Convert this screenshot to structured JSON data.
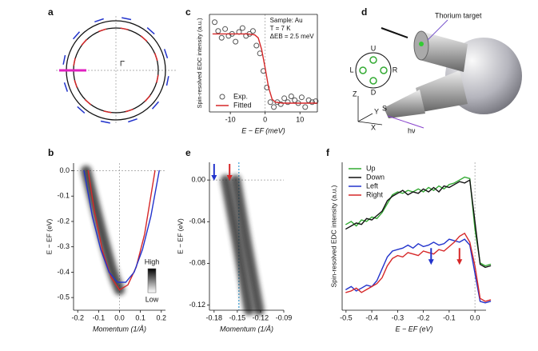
{
  "chart_data": [
    {
      "panel": "c",
      "type": "scatter",
      "xlabel": "E − EF (meV)",
      "ylabel": "Spin-resolved EDC intensity (a.u.)",
      "annotations": [
        "Sample: Au",
        "T = 7 K",
        "ΔEB = 2.5 meV"
      ],
      "xlim": [
        -16,
        15
      ],
      "xticks": [
        -10,
        0,
        10
      ],
      "ylim": [
        0,
        1
      ],
      "legend": "lower left",
      "series": [
        {
          "name": "Exp.",
          "color": "#555555",
          "x": [
            -14.5,
            -13.5,
            -12.5,
            -11.5,
            -10.5,
            -9.5,
            -8.5,
            -7.5,
            -6.5,
            -5.5,
            -4.5,
            -3.5,
            -2.5,
            -1.5,
            -0.5,
            0.5,
            1.5,
            2.5,
            3.5,
            4.5,
            5.5,
            6.5,
            7.5,
            8.5,
            9.5,
            10.5,
            11.5,
            12.5,
            13.5,
            14.5
          ],
          "values": [
            0.92,
            0.83,
            0.76,
            0.85,
            0.78,
            0.8,
            0.72,
            0.82,
            0.86,
            0.78,
            0.8,
            0.83,
            0.68,
            0.6,
            0.42,
            0.25,
            0.1,
            0.05,
            0.1,
            0.08,
            0.14,
            0.1,
            0.16,
            0.12,
            0.09,
            0.15,
            0.05,
            0.12,
            0.1,
            0.11
          ]
        },
        {
          "name": "Fitted",
          "color": "#d62728",
          "type": "line",
          "x": [
            -15,
            -10,
            -5,
            -3,
            -2,
            -1,
            0,
            1,
            2,
            3,
            5,
            10,
            15
          ],
          "values": [
            0.8,
            0.8,
            0.8,
            0.79,
            0.76,
            0.64,
            0.45,
            0.25,
            0.13,
            0.1,
            0.09,
            0.09,
            0.09
          ]
        }
      ]
    },
    {
      "panel": "b",
      "type": "line",
      "xlabel": "Momentum (1/Å)",
      "ylabel": "E − EF (eV)",
      "colorbar_labels": [
        "High",
        "Low"
      ],
      "xlim": [
        -0.22,
        0.22
      ],
      "xticks": [
        -0.2,
        -0.1,
        {
          "value": 0,
          "label": "0.0"
        },
        0.1,
        0.2
      ],
      "ylim": [
        -0.55,
        0.03
      ],
      "yticks": [
        {
          "value": 0,
          "label": "0.0"
        },
        -0.1,
        -0.2,
        -0.3,
        -0.4,
        -0.5
      ],
      "series": [
        {
          "color": "#222222",
          "x": [
            -0.16,
            -0.12,
            -0.08,
            -0.04,
            -0.02,
            0.0
          ],
          "values": [
            0,
            -0.13,
            -0.26,
            -0.38,
            -0.43,
            -0.47
          ]
        },
        {
          "color": "#d62728",
          "x": [
            -0.15,
            -0.12,
            -0.08,
            -0.04,
            0,
            0.04,
            0.08,
            0.12,
            0.17
          ],
          "values": [
            0,
            -0.16,
            -0.32,
            -0.42,
            -0.47,
            -0.45,
            -0.38,
            -0.25,
            0
          ]
        },
        {
          "color": "#2233cc",
          "x": [
            -0.17,
            -0.13,
            -0.09,
            -0.05,
            -0.01,
            0.03,
            0.07,
            0.11,
            0.15,
            0.19
          ],
          "values": [
            0,
            -0.18,
            -0.31,
            -0.4,
            -0.44,
            -0.44,
            -0.4,
            -0.31,
            -0.18,
            0
          ]
        }
      ]
    },
    {
      "panel": "e",
      "type": "line",
      "xlabel": "Momentum (1/Å)",
      "ylabel": "E − EF (eV)",
      "xlim": [
        -0.186,
        -0.09
      ],
      "xticks": [
        -0.18,
        -0.15,
        -0.12,
        -0.09
      ],
      "ylim": [
        -0.125,
        0.017
      ],
      "yticks": [
        {
          "value": 0,
          "label": "0.00"
        },
        -0.04,
        -0.08,
        -0.12
      ],
      "vline": {
        "x": -0.148,
        "color": "#3aa0d8"
      },
      "arrows": [
        {
          "x": -0.18,
          "color": "#2233cc"
        },
        {
          "x": -0.16,
          "color": "#d62728"
        }
      ],
      "series": [
        {
          "color": "#2a2a2a",
          "x": [
            -0.165,
            -0.15,
            -0.135
          ],
          "values": [
            0,
            -0.06,
            -0.125
          ]
        },
        {
          "color": "#2a2a2a",
          "x": [
            -0.152,
            -0.138,
            -0.122
          ],
          "values": [
            0,
            -0.06,
            -0.125
          ]
        }
      ]
    },
    {
      "panel": "f",
      "type": "line",
      "xlabel": "E − EF (eV)",
      "ylabel": "Spin-resolved EDC intensity (a.u.)",
      "xlim": [
        -0.515,
        0.043
      ],
      "xticks": [
        -0.5,
        -0.4,
        -0.3,
        -0.2,
        -0.1,
        {
          "value": 0,
          "label": "0.0"
        }
      ],
      "ylim": [
        0,
        1
      ],
      "legend": "upper left",
      "arrows": [
        {
          "x": -0.17,
          "color": "#2233cc"
        },
        {
          "x": -0.06,
          "color": "#d62728"
        }
      ],
      "x": [
        -0.5,
        -0.48,
        -0.46,
        -0.44,
        -0.42,
        -0.4,
        -0.38,
        -0.36,
        -0.34,
        -0.32,
        -0.3,
        -0.28,
        -0.26,
        -0.24,
        -0.22,
        -0.2,
        -0.18,
        -0.16,
        -0.14,
        -0.12,
        -0.1,
        -0.08,
        -0.06,
        -0.04,
        -0.02,
        0,
        0.02,
        0.04,
        0.06
      ],
      "series": [
        {
          "name": "Up",
          "color": "#33aa33",
          "values": [
            0.58,
            0.6,
            0.57,
            0.61,
            0.6,
            0.63,
            0.62,
            0.66,
            0.72,
            0.78,
            0.8,
            0.79,
            0.81,
            0.8,
            0.82,
            0.8,
            0.83,
            0.81,
            0.84,
            0.82,
            0.85,
            0.86,
            0.88,
            0.9,
            0.89,
            0.55,
            0.32,
            0.3,
            0.31
          ]
        },
        {
          "name": "Down",
          "color": "#111111",
          "values": [
            0.55,
            0.57,
            0.59,
            0.58,
            0.62,
            0.61,
            0.64,
            0.67,
            0.74,
            0.77,
            0.79,
            0.81,
            0.78,
            0.8,
            0.79,
            0.82,
            0.8,
            0.83,
            0.8,
            0.84,
            0.83,
            0.85,
            0.87,
            0.86,
            0.88,
            0.6,
            0.31,
            0.29,
            0.3
          ]
        },
        {
          "name": "Left",
          "color": "#2233cc",
          "values": [
            0.14,
            0.16,
            0.13,
            0.15,
            0.17,
            0.16,
            0.2,
            0.28,
            0.36,
            0.4,
            0.41,
            0.42,
            0.44,
            0.42,
            0.45,
            0.43,
            0.44,
            0.46,
            0.44,
            0.45,
            0.48,
            0.47,
            0.46,
            0.48,
            0.44,
            0.25,
            0.06,
            0.05,
            0.06
          ]
        },
        {
          "name": "Right",
          "color": "#d62728",
          "values": [
            0.12,
            0.13,
            0.15,
            0.12,
            0.14,
            0.16,
            0.18,
            0.22,
            0.3,
            0.35,
            0.37,
            0.36,
            0.39,
            0.38,
            0.37,
            0.4,
            0.39,
            0.38,
            0.41,
            0.4,
            0.43,
            0.46,
            0.5,
            0.52,
            0.46,
            0.3,
            0.08,
            0.06,
            0.07
          ]
        }
      ]
    }
  ],
  "diagrams": {
    "a": {
      "panel": "a",
      "label": "Γ̄"
    },
    "d": {
      "panel": "d",
      "target": "Thorium target",
      "directions": [
        "U",
        "L",
        "R",
        "D"
      ],
      "axes": [
        "Z",
        "Y",
        "X"
      ],
      "sample": "S",
      "photon": "hν"
    }
  }
}
